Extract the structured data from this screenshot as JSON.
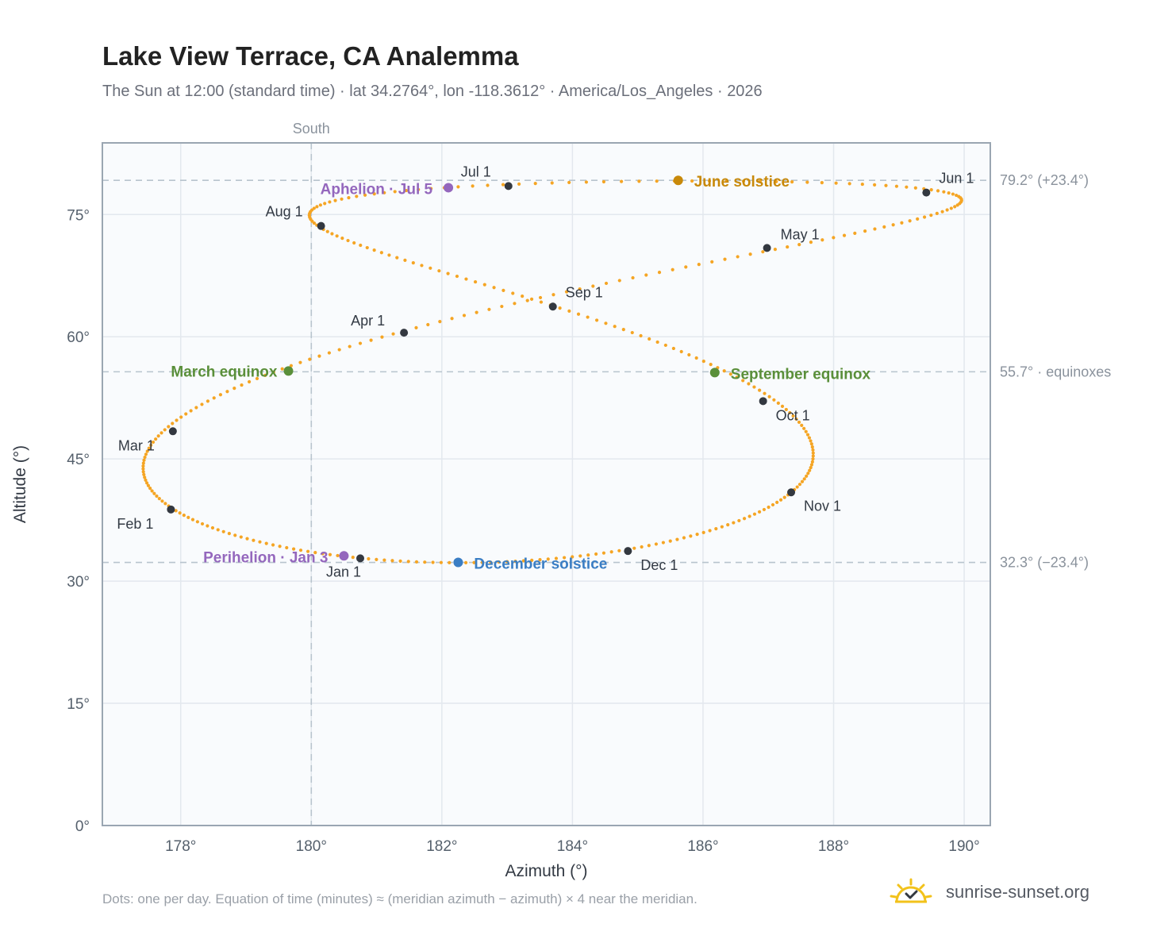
{
  "title": "Lake View Terrace, CA Analemma",
  "subtitle": "The Sun at 12:00 (standard time) · lat 34.2764°, lon -118.3612° · America/Los_Angeles · 2026",
  "footnote": "Dots: one per day. Equation of time (minutes) ≈ (meridian azimuth − azimuth) × 4 near the meridian.",
  "brand": {
    "text": "sunrise-sunset.org",
    "icon": "sun-logo-icon"
  },
  "colors": {
    "path": "#f5a524",
    "month_dot": "#333840",
    "equinox": "#5a8f3a",
    "june": "#c8890a",
    "december": "#3b7ec4",
    "apsis": "#9467bd",
    "grid": "#e3e8ee",
    "refline": "#b8c4cd",
    "plot_bg": "#f9fbfd",
    "frame": "#9aa6b2"
  },
  "chart_data": {
    "type": "scatter",
    "xlabel": "Azimuth (°)",
    "ylabel": "Altitude (°)",
    "xlim": [
      176.8,
      190.4
    ],
    "ylim": [
      0,
      83.8
    ],
    "xticks": [
      {
        "value": 178,
        "label": "178°"
      },
      {
        "value": 180,
        "label": "180°"
      },
      {
        "value": 182,
        "label": "182°"
      },
      {
        "value": 184,
        "label": "184°"
      },
      {
        "value": 186,
        "label": "186°"
      },
      {
        "value": 188,
        "label": "188°"
      },
      {
        "value": 190,
        "label": "190°"
      }
    ],
    "yticks": [
      {
        "value": 0,
        "label": "0°"
      },
      {
        "value": 15,
        "label": "15°"
      },
      {
        "value": 30,
        "label": "30°"
      },
      {
        "value": 45,
        "label": "45°"
      },
      {
        "value": 60,
        "label": "60°"
      },
      {
        "value": 75,
        "label": "75°"
      }
    ],
    "grid": true,
    "reference_lines": [
      {
        "axis": "x",
        "value": 180,
        "label": "South"
      },
      {
        "axis": "y",
        "value": 79.2,
        "label": "79.2° (+23.4°)"
      },
      {
        "axis": "y",
        "value": 55.7,
        "label": "55.7° · equinoxes"
      },
      {
        "axis": "y",
        "value": 32.3,
        "label": "32.3° (−23.4°)"
      }
    ],
    "month_markers": [
      {
        "label": "Jan 1",
        "az": 180.75,
        "alt": 32.8
      },
      {
        "label": "Feb 1",
        "az": 177.85,
        "alt": 38.8
      },
      {
        "label": "Mar 1",
        "az": 177.88,
        "alt": 48.4
      },
      {
        "label": "Apr 1",
        "az": 181.42,
        "alt": 60.5
      },
      {
        "label": "May 1",
        "az": 186.98,
        "alt": 70.9
      },
      {
        "label": "Jun 1",
        "az": 189.42,
        "alt": 77.7
      },
      {
        "label": "Jul 1",
        "az": 183.02,
        "alt": 78.5
      },
      {
        "label": "Aug 1",
        "az": 180.15,
        "alt": 73.6
      },
      {
        "label": "Sep 1",
        "az": 183.7,
        "alt": 63.7
      },
      {
        "label": "Oct 1",
        "az": 186.92,
        "alt": 52.1
      },
      {
        "label": "Nov 1",
        "az": 187.35,
        "alt": 40.9
      },
      {
        "label": "Dec 1",
        "az": 184.85,
        "alt": 33.7
      }
    ],
    "events": [
      {
        "label": "March equinox",
        "az": 179.65,
        "alt": 55.8,
        "color_key": "equinox"
      },
      {
        "label": "June solstice",
        "az": 185.62,
        "alt": 79.2,
        "color_key": "june"
      },
      {
        "label": "September equinox",
        "az": 186.18,
        "alt": 55.6,
        "color_key": "equinox"
      },
      {
        "label": "December solstice",
        "az": 182.25,
        "alt": 32.3,
        "color_key": "december"
      },
      {
        "label": "Aphelion · Jul 5",
        "az": 182.1,
        "alt": 78.3,
        "color_key": "apsis"
      },
      {
        "label": "Perihelion · Jan 3",
        "az": 180.5,
        "alt": 33.1,
        "color_key": "apsis"
      }
    ]
  }
}
